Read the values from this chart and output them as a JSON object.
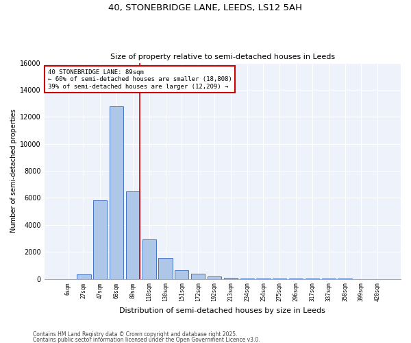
{
  "title_line1": "40, STONEBRIDGE LANE, LEEDS, LS12 5AH",
  "title_line2": "Size of property relative to semi-detached houses in Leeds",
  "xlabel": "Distribution of semi-detached houses by size in Leeds",
  "ylabel": "Number of semi-detached properties",
  "categories": [
    "6sqm",
    "27sqm",
    "47sqm",
    "68sqm",
    "89sqm",
    "110sqm",
    "130sqm",
    "151sqm",
    "172sqm",
    "192sqm",
    "213sqm",
    "234sqm",
    "254sqm",
    "275sqm",
    "296sqm",
    "317sqm",
    "337sqm",
    "358sqm",
    "399sqm",
    "420sqm"
  ],
  "values": [
    0,
    350,
    5800,
    12800,
    6500,
    2900,
    1550,
    650,
    400,
    175,
    100,
    50,
    40,
    20,
    10,
    5,
    5,
    3,
    2,
    1
  ],
  "bar_color": "#aec6e8",
  "bar_edge_color": "#4472c4",
  "red_line_index": 4,
  "red_line_color": "#cc0000",
  "annotation_title": "40 STONEBRIDGE LANE: 89sqm",
  "annotation_line1": "← 60% of semi-detached houses are smaller (18,808)",
  "annotation_line2": "39% of semi-detached houses are larger (12,209) →",
  "annotation_box_color": "#cc0000",
  "ylim": [
    0,
    16000
  ],
  "yticks": [
    0,
    2000,
    4000,
    6000,
    8000,
    10000,
    12000,
    14000,
    16000
  ],
  "footnote_line1": "Contains HM Land Registry data © Crown copyright and database right 2025.",
  "footnote_line2": "Contains public sector information licensed under the Open Government Licence v3.0.",
  "bg_color": "#ffffff",
  "plot_bg_color": "#eef2fb",
  "grid_color": "#ffffff"
}
